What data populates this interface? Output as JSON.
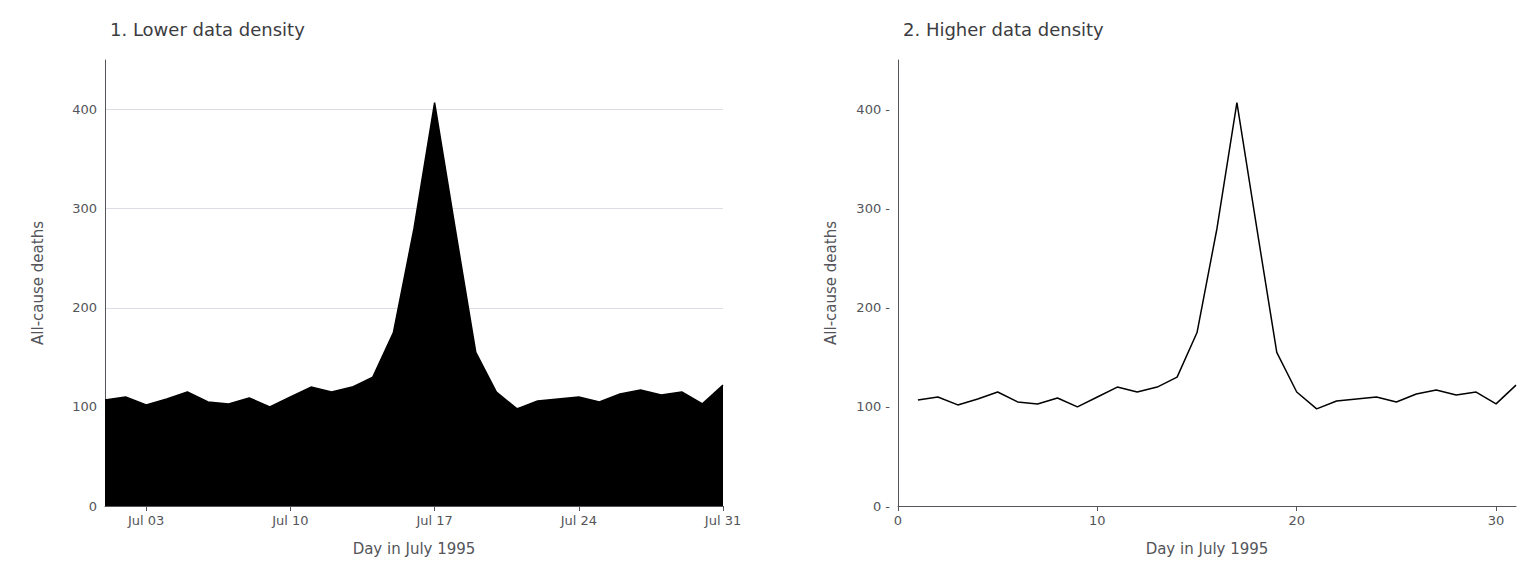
{
  "chart_data": [
    {
      "type": "area",
      "title": "1. Lower data density",
      "xlabel": "Day in July 1995",
      "ylabel": "All-cause deaths",
      "x": [
        1,
        2,
        3,
        4,
        5,
        6,
        7,
        8,
        9,
        10,
        11,
        12,
        13,
        14,
        15,
        16,
        17,
        18,
        19,
        20,
        21,
        22,
        23,
        24,
        25,
        26,
        27,
        28,
        29,
        30,
        31
      ],
      "values": [
        107,
        110,
        102,
        108,
        115,
        105,
        103,
        109,
        100,
        110,
        120,
        115,
        120,
        130,
        175,
        280,
        407,
        280,
        155,
        115,
        98,
        106,
        108,
        110,
        105,
        113,
        117,
        112,
        115,
        103,
        122
      ],
      "color": "#000000",
      "xlim": [
        1,
        31
      ],
      "xticks": [
        {
          "value": 3,
          "label": "Jul 03"
        },
        {
          "value": 10,
          "label": "Jul 10"
        },
        {
          "value": 17,
          "label": "Jul 17"
        },
        {
          "value": 24,
          "label": "Jul 24"
        },
        {
          "value": 31,
          "label": "Jul 31"
        }
      ],
      "ylim": [
        0,
        450
      ],
      "yticks": [
        0,
        100,
        200,
        300,
        400
      ],
      "grid": true
    },
    {
      "type": "line",
      "title": "2. Higher data density",
      "xlabel": "Day in July 1995",
      "ylabel": "All-cause deaths",
      "x": [
        1,
        2,
        3,
        4,
        5,
        6,
        7,
        8,
        9,
        10,
        11,
        12,
        13,
        14,
        15,
        16,
        17,
        18,
        19,
        20,
        21,
        22,
        23,
        24,
        25,
        26,
        27,
        28,
        29,
        30,
        31
      ],
      "values": [
        107,
        110,
        102,
        108,
        115,
        105,
        103,
        109,
        100,
        110,
        120,
        115,
        120,
        130,
        175,
        280,
        407,
        280,
        155,
        115,
        98,
        106,
        108,
        110,
        105,
        113,
        117,
        112,
        115,
        103,
        122
      ],
      "color": "#000000",
      "xlim": [
        0,
        31
      ],
      "xticks": [
        0,
        10,
        20,
        30
      ],
      "ylim": [
        0,
        450
      ],
      "yticks": [
        {
          "value": 0,
          "label": "0 -"
        },
        {
          "value": 100,
          "label": "100 -"
        },
        {
          "value": 200,
          "label": "200 -"
        },
        {
          "value": 300,
          "label": "300 -"
        },
        {
          "value": 400,
          "label": "400 -"
        }
      ],
      "grid": false
    }
  ]
}
